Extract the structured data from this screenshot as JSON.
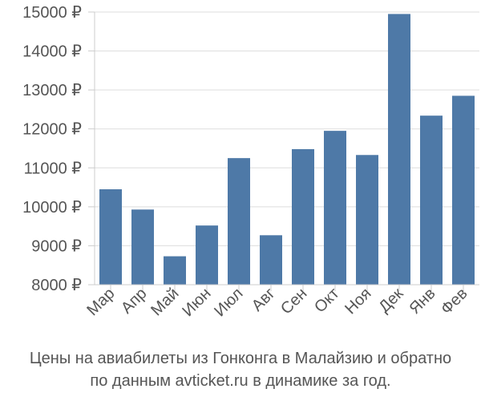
{
  "chart_data": {
    "type": "bar",
    "categories": [
      "Мар",
      "Апр",
      "Май",
      "Июн",
      "Июл",
      "Авг",
      "Сен",
      "Окт",
      "Ноя",
      "Дек",
      "Янв",
      "Фев"
    ],
    "values": [
      10450,
      9930,
      8730,
      9520,
      11250,
      9270,
      11480,
      11950,
      11330,
      14950,
      12340,
      12850
    ],
    "ylim": [
      8000,
      15000
    ],
    "yticks": [
      8000,
      9000,
      10000,
      11000,
      12000,
      13000,
      14000,
      15000
    ],
    "ytick_labels": [
      "8000 ₽",
      "9000 ₽",
      "10000 ₽",
      "11000 ₽",
      "12000 ₽",
      "13000 ₽",
      "14000 ₽",
      "15000 ₽"
    ],
    "grid": true,
    "bar_color": "#4e79a7",
    "caption_line1": "Цены на авиабилеты из Гонконга в Малайзию и обратно",
    "caption_line2": "по данным avticket.ru в динамике за год."
  }
}
